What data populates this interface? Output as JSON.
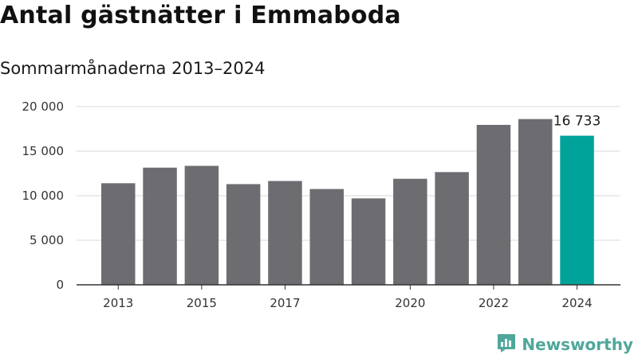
{
  "header": {
    "title": "Antal gästnätter i Emmaboda",
    "subtitle": "Sommarmånaderna 2013–2024"
  },
  "brand": {
    "name": "Newsworthy",
    "color": "#4fa79a",
    "icon": "newsworthy-logo-icon"
  },
  "colors": {
    "bar": "#6d6c71",
    "highlight": "#00a39a",
    "grid": "#d9d9d9",
    "axis": "#333333"
  },
  "chart_data": {
    "type": "bar",
    "categories": [
      "2013",
      "2014",
      "2015",
      "2016",
      "2017",
      "2018",
      "2019",
      "2020",
      "2021",
      "2022",
      "2023",
      "2024"
    ],
    "values": [
      11400,
      13150,
      13350,
      11300,
      11650,
      10750,
      9700,
      11900,
      12650,
      17950,
      18600,
      16733
    ],
    "highlight_index": 11,
    "data_labels": [
      {
        "index": 11,
        "text": "16 733"
      }
    ],
    "x_tick_labels": [
      "2013",
      "",
      "2015",
      "",
      "2017",
      "",
      "",
      "2020",
      "",
      "2022",
      "",
      "2024"
    ],
    "y_ticks": [
      0,
      5000,
      10000,
      15000,
      20000
    ],
    "y_tick_labels": [
      "0",
      "5 000",
      "10 000",
      "15 000",
      "20 000"
    ],
    "ylim": [
      0,
      20000
    ],
    "grid": true,
    "legend": false,
    "xlabel": "",
    "ylabel": ""
  }
}
